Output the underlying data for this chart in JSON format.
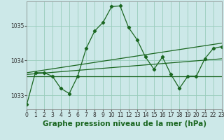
{
  "title": "Graphe pression niveau de la mer (hPa)",
  "bg_color": "#cce8e8",
  "grid_color": "#99ccbb",
  "line_color": "#1a6620",
  "xlim": [
    0,
    23
  ],
  "ylim": [
    1032.6,
    1035.7
  ],
  "yticks": [
    1033,
    1034,
    1035
  ],
  "xticks": [
    0,
    1,
    2,
    3,
    4,
    5,
    6,
    7,
    8,
    9,
    10,
    11,
    12,
    13,
    14,
    15,
    16,
    17,
    18,
    19,
    20,
    21,
    22,
    23
  ],
  "line1_x": [
    0,
    1,
    2,
    3,
    4,
    5,
    6,
    7,
    8,
    9,
    10,
    11,
    12,
    13,
    14,
    15,
    16,
    17,
    18,
    19,
    20,
    21,
    22,
    23
  ],
  "line1_y": [
    1032.75,
    1033.65,
    1033.65,
    1033.55,
    1033.2,
    1033.05,
    1033.55,
    1034.35,
    1034.85,
    1035.1,
    1035.55,
    1035.57,
    1034.95,
    1034.6,
    1034.1,
    1033.75,
    1034.1,
    1033.6,
    1033.2,
    1033.55,
    1033.55,
    1034.05,
    1034.35,
    1034.4
  ],
  "line2_x": [
    0,
    23
  ],
  "line2_y": [
    1033.55,
    1033.55
  ],
  "line3_x": [
    0,
    23
  ],
  "line3_y": [
    1033.6,
    1034.05
  ],
  "line4_x": [
    0,
    23
  ],
  "line4_y": [
    1033.65,
    1034.5
  ],
  "title_fontsize": 7.5,
  "tick_fontsize": 5.5
}
